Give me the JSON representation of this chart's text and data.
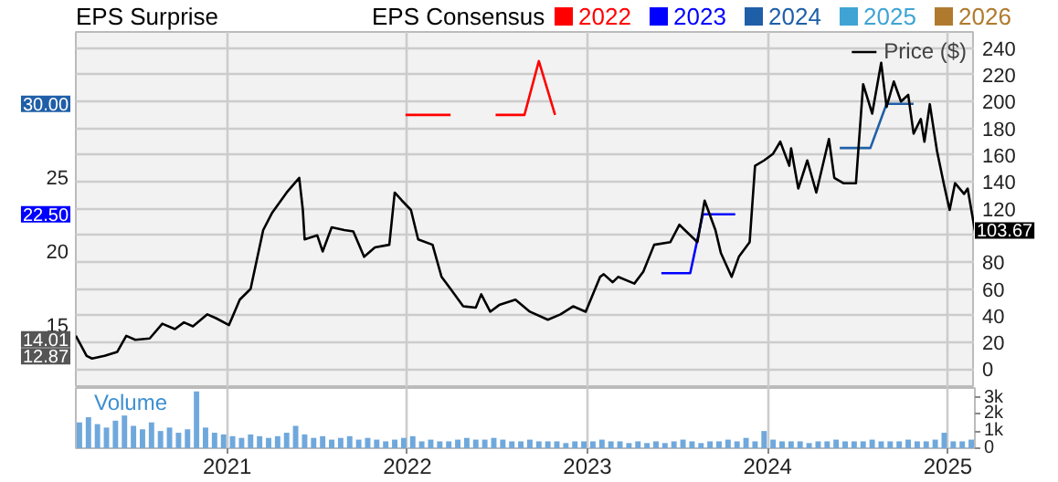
{
  "chart_data": [
    {
      "type": "line",
      "title": "EPS Surprise",
      "legend_title": "EPS Consensus",
      "legend": "top",
      "grid": true,
      "tick_labels": "y",
      "xlim": [
        2020.16,
        2025.15
      ],
      "xticks": [
        2021,
        2022,
        2023,
        2024,
        2025
      ],
      "ylim": [
        10.71,
        34.88
      ],
      "yticks": [
        15,
        20,
        25,
        {
          "value": 22.5,
          "label": "22.50"
        },
        {
          "value": 30.0,
          "label": "30.00"
        },
        {
          "value": 14.01,
          "label": "14.01"
        },
        {
          "value": 12.87,
          "label": "12.87"
        }
      ],
      "y2lim": [
        -14,
        252
      ],
      "y2ticks": [
        0,
        20,
        40,
        60,
        80,
        {
          "value": 100,
          "label": null
        },
        120,
        140,
        160,
        180,
        200,
        220,
        240,
        {
          "value": 103.67,
          "label": "103.67"
        }
      ],
      "series": [
        {
          "name": "2022",
          "color": "#ff0000",
          "x": [
            2021.99,
            2022.24,
            2022.36,
            2022.49,
            2022.65,
            2022.73,
            2022.82
          ],
          "values": [
            29.25,
            29.25,
            null,
            29.25,
            29.25,
            32.9,
            29.25
          ]
        },
        {
          "name": "2023",
          "color": "#0000ff",
          "x": [
            2023.41,
            2023.57,
            2023.64,
            2023.82
          ],
          "values": [
            18.5,
            18.5,
            22.5,
            22.5
          ]
        },
        {
          "name": "2024",
          "color": "#1f5fa8",
          "x": [
            2024.4,
            2024.57,
            2024.66,
            2024.81
          ],
          "values": [
            27.0,
            27.0,
            30.0,
            30.0
          ]
        },
        {
          "name": "2025",
          "color": "#3fa4d4"
        },
        {
          "name": "2026",
          "color": "#b07a2e"
        },
        {
          "name": "Price ($)",
          "color": "#000000",
          "axis": "y2",
          "x": [
            2020.16,
            2020.22,
            2020.25,
            2020.32,
            2020.39,
            2020.44,
            2020.49,
            2020.57,
            2020.64,
            2020.71,
            2020.76,
            2020.81,
            2020.89,
            2020.94,
            2021.01,
            2021.07,
            2021.13,
            2021.2,
            2021.25,
            2021.33,
            2021.4,
            2021.42,
            2021.43,
            2021.5,
            2021.53,
            2021.58,
            2021.65,
            2021.7,
            2021.76,
            2021.82,
            2021.9,
            2021.93,
            2021.97,
            2022.02,
            2022.06,
            2022.14,
            2022.19,
            2022.24,
            2022.31,
            2022.38,
            2022.41,
            2022.46,
            2022.51,
            2022.6,
            2022.68,
            2022.78,
            2022.85,
            2022.92,
            2022.99,
            2023.07,
            2023.09,
            2023.14,
            2023.17,
            2023.26,
            2023.31,
            2023.37,
            2023.46,
            2023.51,
            2023.54,
            2023.61,
            2023.65,
            2023.71,
            2023.74,
            2023.8,
            2023.84,
            2023.9,
            2023.93,
            2023.98,
            2024.03,
            2024.07,
            2024.12,
            2024.13,
            2024.17,
            2024.22,
            2024.27,
            2024.34,
            2024.37,
            2024.42,
            2024.49,
            2024.53,
            2024.58,
            2024.63,
            2024.66,
            2024.7,
            2024.74,
            2024.78,
            2024.81,
            2024.85,
            2024.87,
            2024.9,
            2024.94,
            2024.98,
            2025.01,
            2025.04,
            2025.09,
            2025.11,
            2025.15
          ],
          "values": [
            25,
            10,
            8,
            10,
            13,
            25,
            22,
            23,
            34,
            30,
            35,
            32,
            41,
            38,
            33,
            52,
            60,
            104,
            117,
            132,
            143,
            119,
            97,
            100,
            88,
            106,
            104,
            103,
            84,
            91,
            93,
            132,
            126,
            119,
            97,
            93,
            69,
            60,
            47,
            46,
            56,
            43,
            48,
            52,
            43,
            37,
            41,
            47,
            43,
            69,
            71,
            65,
            69,
            64,
            73,
            93,
            95,
            108,
            104,
            95,
            126,
            104,
            87,
            69,
            84,
            95,
            152,
            156,
            161,
            170,
            152,
            165,
            135,
            156,
            132,
            172,
            143,
            139,
            139,
            213,
            191,
            229,
            196,
            215,
            200,
            205,
            176,
            187,
            170,
            198,
            163,
            137,
            119,
            139,
            131,
            135,
            103.67
          ]
        }
      ]
    },
    {
      "type": "bar",
      "title": "Volume",
      "grid": "x",
      "xlim": [
        2020.16,
        2025.15
      ],
      "xticks": [
        2021,
        2022,
        2023,
        2024,
        2025
      ],
      "y2lim": [
        0,
        3500
      ],
      "y2ticks": [
        0,
        {
          "value": 1000,
          "label": "1k"
        },
        {
          "value": 2000,
          "label": "2k"
        },
        {
          "value": 3000,
          "label": "3k"
        }
      ],
      "x": [
        2020.18,
        2020.23,
        2020.28,
        2020.33,
        2020.38,
        2020.43,
        2020.48,
        2020.53,
        2020.58,
        2020.63,
        2020.68,
        2020.73,
        2020.78,
        2020.83,
        2020.88,
        2020.93,
        2020.98,
        2021.03,
        2021.08,
        2021.13,
        2021.18,
        2021.23,
        2021.28,
        2021.33,
        2021.38,
        2021.43,
        2021.48,
        2021.53,
        2021.58,
        2021.63,
        2021.68,
        2021.73,
        2021.78,
        2021.83,
        2021.88,
        2021.93,
        2021.98,
        2022.03,
        2022.08,
        2022.13,
        2022.18,
        2022.23,
        2022.28,
        2022.33,
        2022.38,
        2022.43,
        2022.48,
        2022.53,
        2022.58,
        2022.63,
        2022.68,
        2022.73,
        2022.78,
        2022.83,
        2022.88,
        2022.93,
        2022.98,
        2023.03,
        2023.08,
        2023.13,
        2023.18,
        2023.23,
        2023.28,
        2023.33,
        2023.38,
        2023.43,
        2023.48,
        2023.53,
        2023.58,
        2023.63,
        2023.68,
        2023.73,
        2023.78,
        2023.83,
        2023.88,
        2023.93,
        2023.98,
        2024.03,
        2024.08,
        2024.13,
        2024.18,
        2024.23,
        2024.28,
        2024.33,
        2024.38,
        2024.43,
        2024.48,
        2024.53,
        2024.58,
        2024.63,
        2024.68,
        2024.73,
        2024.78,
        2024.83,
        2024.88,
        2024.93,
        2024.98,
        2025.03,
        2025.08,
        2025.13
      ],
      "series": [
        {
          "color": "#6fa8dc",
          "axis": "y2",
          "values": [
            1500,
            1800,
            1400,
            1200,
            1600,
            1900,
            1300,
            1100,
            1500,
            1000,
            1200,
            900,
            1100,
            3300,
            1200,
            900,
            800,
            700,
            600,
            800,
            700,
            600,
            700,
            900,
            1300,
            800,
            600,
            700,
            500,
            600,
            700,
            500,
            600,
            500,
            400,
            500,
            600,
            700,
            400,
            500,
            400,
            400,
            500,
            600,
            500,
            500,
            600,
            500,
            400,
            400,
            500,
            400,
            400,
            400,
            300,
            400,
            400,
            400,
            500,
            400,
            400,
            300,
            400,
            300,
            400,
            300,
            400,
            500,
            400,
            300,
            400,
            400,
            500,
            400,
            600,
            400,
            1000,
            500,
            400,
            400,
            400,
            300,
            400,
            400,
            500,
            400,
            400,
            400,
            500,
            400,
            400,
            400,
            500,
            400,
            400,
            500,
            900,
            400,
            400,
            500
          ]
        }
      ]
    }
  ]
}
